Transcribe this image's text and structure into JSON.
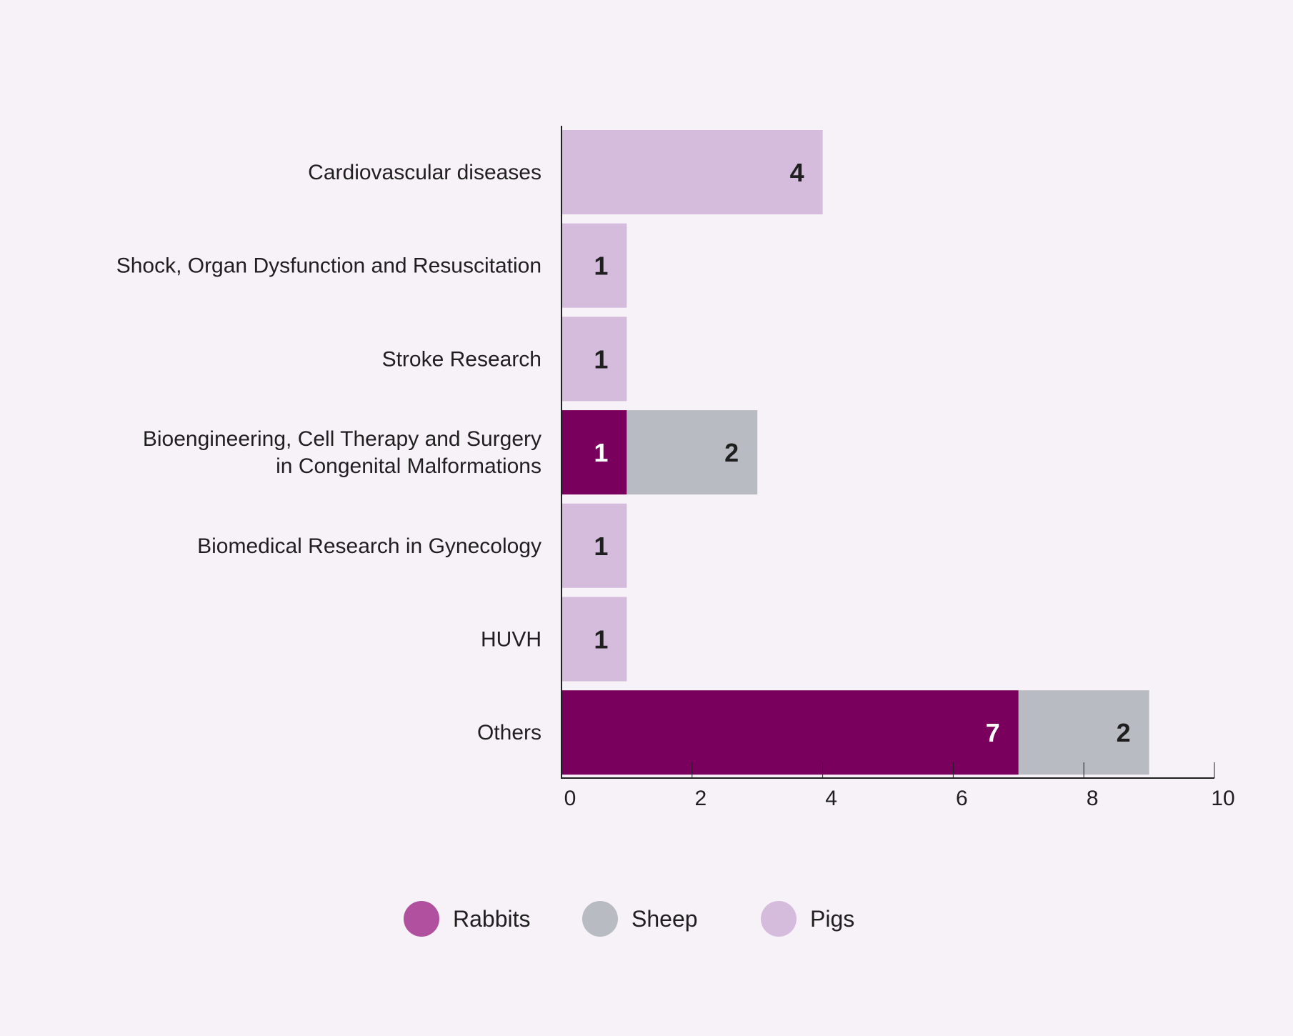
{
  "chart_data": {
    "type": "bar",
    "orientation": "horizontal",
    "stacked": true,
    "categories": [
      [
        "Cardiovascular diseases"
      ],
      [
        "Shock, Organ Dysfunction and Resuscitation"
      ],
      [
        "Stroke Research"
      ],
      [
        "Bioengineering, Cell Therapy and Surgery",
        "in Congenital Malformations"
      ],
      [
        "Biomedical Research in Gynecology"
      ],
      [
        "HUVH"
      ],
      [
        "Others"
      ]
    ],
    "series": [
      {
        "name": "Rabbits",
        "values": [
          0,
          0,
          0,
          1,
          0,
          0,
          7
        ],
        "color": "#7a005e",
        "legend_color": "#b0509e",
        "label_color": "#ffffff"
      },
      {
        "name": "Sheep",
        "values": [
          0,
          0,
          0,
          2,
          0,
          0,
          2
        ],
        "color": "#b8bcc2",
        "legend_color": "#b8bcc2",
        "label_color": "#1f1f1f"
      },
      {
        "name": "Pigs",
        "values": [
          4,
          1,
          1,
          0,
          1,
          1,
          0
        ],
        "color": "#d5bbdc",
        "legend_color": "#d5bbdc",
        "label_color": "#1f1f1f"
      }
    ],
    "xlim": [
      0,
      10
    ],
    "xticks": [
      0,
      2,
      4,
      6,
      8,
      10
    ],
    "grid": false,
    "legend_position": "bottom-center",
    "title": "",
    "xlabel": "",
    "ylabel": ""
  }
}
